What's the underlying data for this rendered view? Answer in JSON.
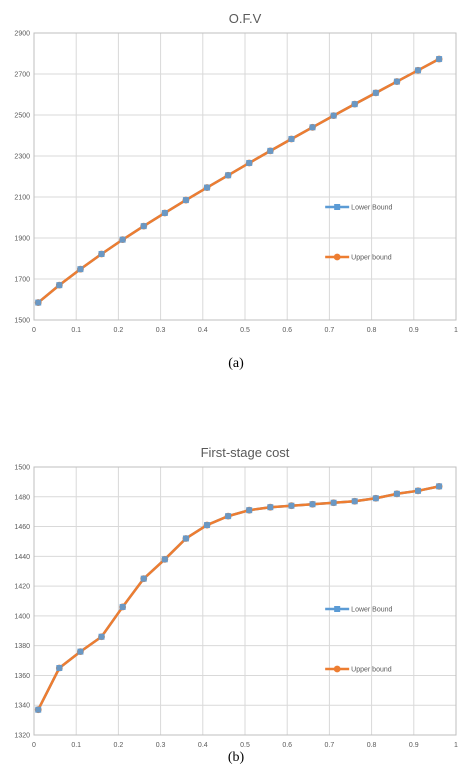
{
  "colors": {
    "lower": "#5B9BD5",
    "upper": "#ED7D31",
    "grid": "#D9D9D9",
    "axis": "#BFBFBF"
  },
  "chart_data": [
    {
      "type": "line",
      "title": "O.F.V",
      "caption": "(a)",
      "xlabel": "",
      "ylabel": "",
      "xlim": [
        0,
        1
      ],
      "ylim": [
        1500,
        2900
      ],
      "xticks": [
        "0",
        "0.1",
        "0.2",
        "0.3",
        "0.4",
        "0.5",
        "0.6",
        "0.7",
        "0.8",
        "0.9",
        "1"
      ],
      "yticks": [
        "1500",
        "1700",
        "1900",
        "2100",
        "2300",
        "2500",
        "2700",
        "2900"
      ],
      "grid": true,
      "legend": "right",
      "x": [
        0.01,
        0.06,
        0.11,
        0.16,
        0.21,
        0.26,
        0.31,
        0.36,
        0.41,
        0.46,
        0.51,
        0.56,
        0.61,
        0.66,
        0.71,
        0.76,
        0.81,
        0.86,
        0.91,
        0.96
      ],
      "series": [
        {
          "name": "Lower Bound",
          "values": [
            1585,
            1670,
            1748,
            1822,
            1892,
            1958,
            2022,
            2085,
            2146,
            2206,
            2266,
            2325,
            2383,
            2440,
            2497,
            2553,
            2608,
            2663,
            2718,
            2773
          ]
        },
        {
          "name": "Upper bound",
          "values": [
            1585,
            1670,
            1748,
            1822,
            1892,
            1958,
            2022,
            2085,
            2146,
            2206,
            2266,
            2325,
            2383,
            2440,
            2497,
            2553,
            2608,
            2663,
            2718,
            2773
          ]
        }
      ]
    },
    {
      "type": "line",
      "title": "First-stage cost",
      "caption": "(b)",
      "xlabel": "",
      "ylabel": "",
      "xlim": [
        0,
        1
      ],
      "ylim": [
        1320,
        1500
      ],
      "xticks": [
        "0",
        "0.1",
        "0.2",
        "0.3",
        "0.4",
        "0.5",
        "0.6",
        "0.7",
        "0.8",
        "0.9",
        "1"
      ],
      "yticks": [
        "1320",
        "1340",
        "1360",
        "1380",
        "1400",
        "1420",
        "1440",
        "1460",
        "1480",
        "1500"
      ],
      "grid": true,
      "legend": "right",
      "x": [
        0.01,
        0.06,
        0.11,
        0.16,
        0.21,
        0.26,
        0.31,
        0.36,
        0.41,
        0.46,
        0.51,
        0.56,
        0.61,
        0.66,
        0.71,
        0.76,
        0.81,
        0.86,
        0.91,
        0.96
      ],
      "series": [
        {
          "name": "Lower Bound",
          "values": [
            1337,
            1365,
            1376,
            1386,
            1406,
            1425,
            1438,
            1452,
            1461,
            1467,
            1471,
            1473,
            1474,
            1475,
            1476,
            1477,
            1479,
            1482,
            1484,
            1487
          ]
        },
        {
          "name": "Upper bound",
          "values": [
            1337,
            1365,
            1376,
            1386,
            1406,
            1425,
            1438,
            1452,
            1461,
            1467,
            1471,
            1473,
            1474,
            1475,
            1476,
            1477,
            1479,
            1482,
            1484,
            1487
          ]
        }
      ]
    }
  ]
}
